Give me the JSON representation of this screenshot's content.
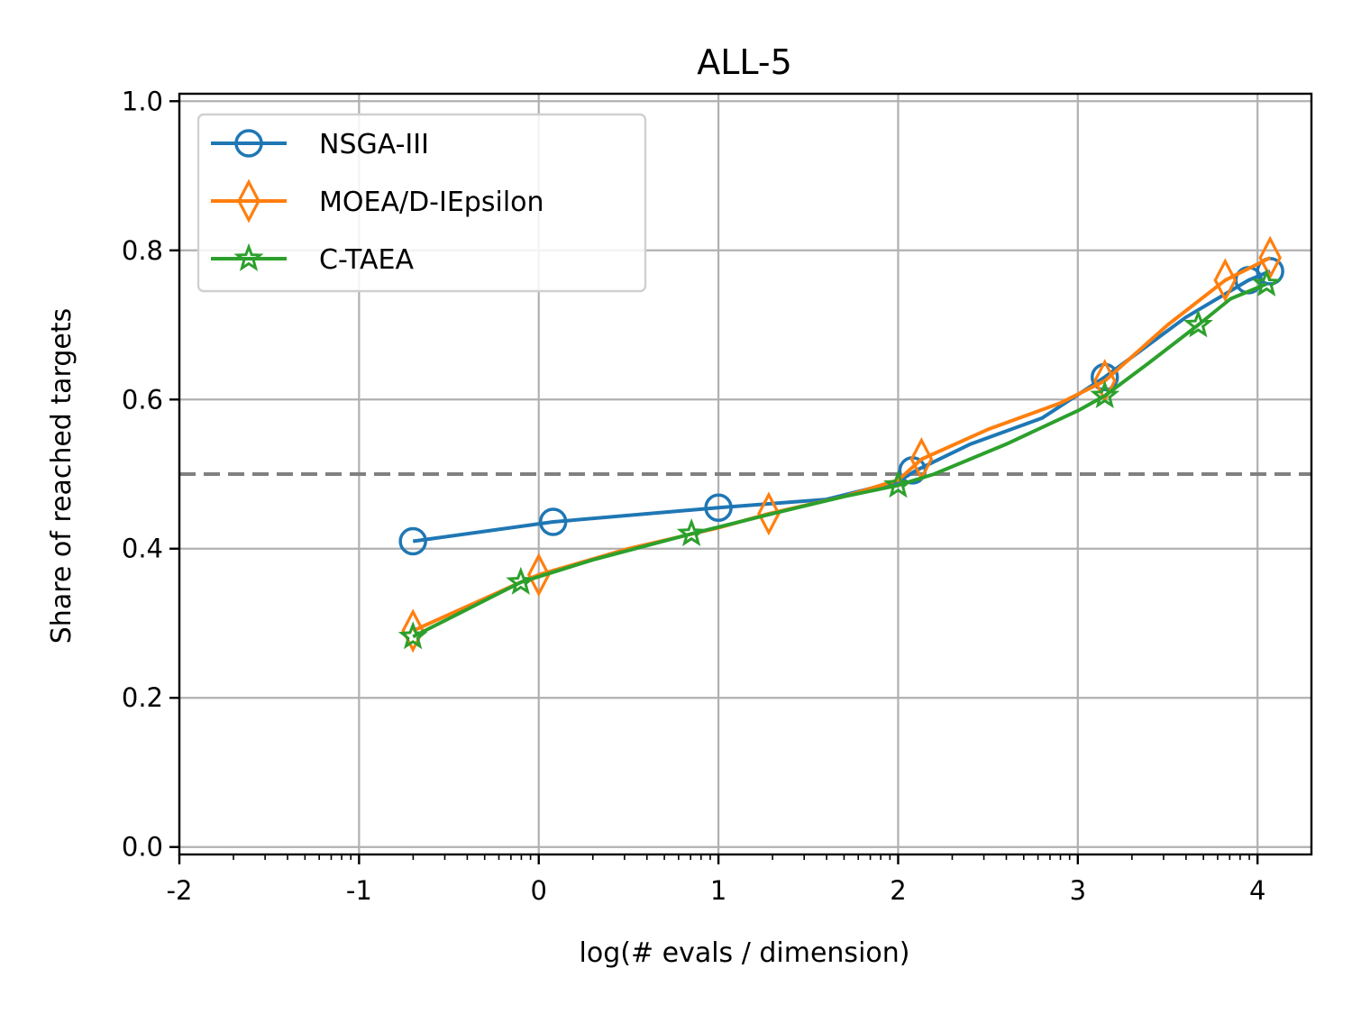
{
  "chart_data": {
    "type": "line",
    "title": "ALL-5",
    "xlabel": "log(# evals / dimension)",
    "ylabel": "Share of reached targets",
    "xlim": [
      -2,
      4.3
    ],
    "ylim": [
      -0.01,
      1.01
    ],
    "x_ticks": [
      -2,
      -1,
      0,
      1,
      2,
      3,
      4
    ],
    "x_tick_labels": [
      "-2",
      "-1",
      "0",
      "1",
      "2",
      "3",
      "4"
    ],
    "y_ticks": [
      0.0,
      0.2,
      0.4,
      0.6,
      0.8,
      1.0
    ],
    "y_tick_labels": [
      "0.0",
      "0.2",
      "0.4",
      "0.6",
      "0.8",
      "1.0"
    ],
    "grid": true,
    "legend_position": "top-left",
    "reference_line": {
      "y": 0.5,
      "style": "dashed",
      "color": "#808080"
    },
    "series": [
      {
        "name": "NSGA-III",
        "color": "#1f77b4",
        "marker": "circle",
        "x": [
          -0.7,
          0.08,
          1.0,
          1.6,
          2.0,
          2.1,
          2.4,
          2.8,
          3.15,
          3.6,
          3.95,
          4.07
        ],
        "y": [
          0.41,
          0.436,
          0.455,
          0.466,
          0.49,
          0.505,
          0.54,
          0.575,
          0.63,
          0.71,
          0.76,
          0.772
        ],
        "marker_x": [
          -0.7,
          0.08,
          1.0,
          2.08,
          3.15,
          3.95,
          4.07
        ],
        "marker_y": [
          0.41,
          0.436,
          0.455,
          0.505,
          0.63,
          0.76,
          0.772
        ]
      },
      {
        "name": "MOEA/D-IEpsilon",
        "color": "#ff7f0e",
        "marker": "diamond",
        "x": [
          -0.7,
          -0.1,
          0.0,
          0.5,
          1.0,
          1.28,
          1.7,
          2.0,
          2.13,
          2.5,
          2.9,
          3.15,
          3.5,
          3.82,
          4.07
        ],
        "y": [
          0.29,
          0.355,
          0.365,
          0.4,
          0.428,
          0.447,
          0.47,
          0.492,
          0.52,
          0.56,
          0.595,
          0.625,
          0.7,
          0.76,
          0.79
        ],
        "marker_x": [
          -0.7,
          0.0,
          1.28,
          2.13,
          3.15,
          3.82,
          4.07
        ],
        "marker_y": [
          0.29,
          0.365,
          0.447,
          0.52,
          0.625,
          0.76,
          0.79
        ]
      },
      {
        "name": "C-TAEA",
        "color": "#2ca02c",
        "marker": "star",
        "x": [
          -0.7,
          -0.1,
          0.3,
          0.85,
          1.3,
          1.7,
          2.0,
          2.2,
          2.6,
          3.0,
          3.15,
          3.4,
          3.67,
          3.85,
          4.05
        ],
        "y": [
          0.282,
          0.355,
          0.385,
          0.42,
          0.447,
          0.47,
          0.485,
          0.5,
          0.54,
          0.585,
          0.605,
          0.65,
          0.7,
          0.735,
          0.755
        ],
        "marker_x": [
          -0.7,
          -0.1,
          0.85,
          2.0,
          3.15,
          3.67,
          4.05
        ],
        "marker_y": [
          0.282,
          0.355,
          0.42,
          0.485,
          0.605,
          0.7,
          0.755
        ]
      }
    ]
  }
}
